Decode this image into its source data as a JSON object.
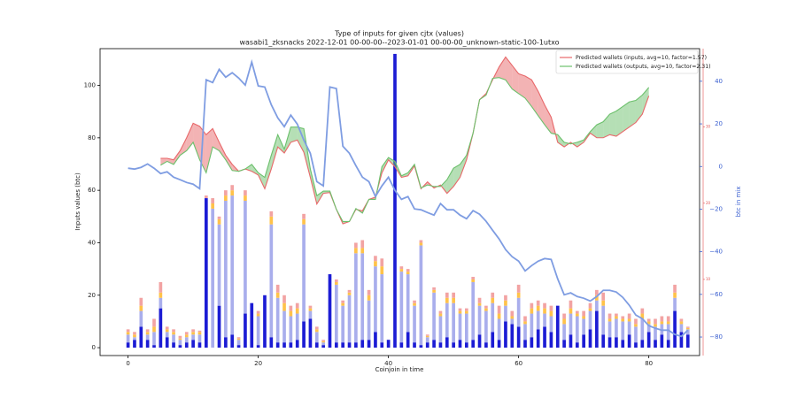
{
  "chart_data": {
    "type": "bar",
    "title": "Type of inputs for given cjtx (values)",
    "subtitle": "wasabi1_zksnacks 2022-12-01 00-00-00--2023-01-01 00-00-00_unknown-static-100-1utxo",
    "x_label": "Coinjoin in time",
    "y_label": "Inputs values (btc)",
    "y2_label": "btc in mix",
    "legend": "upper right",
    "x": [
      0,
      1,
      2,
      3,
      4,
      5,
      6,
      7,
      8,
      9,
      10,
      11,
      12,
      13,
      14,
      15,
      16,
      17,
      18,
      19,
      20,
      21,
      22,
      23,
      24,
      25,
      26,
      27,
      28,
      29,
      30,
      31,
      32,
      33,
      34,
      35,
      36,
      37,
      38,
      39,
      40,
      41,
      42,
      43,
      44,
      45,
      46,
      47,
      48,
      49,
      50,
      51,
      52,
      53,
      54,
      55,
      56,
      57,
      58,
      59,
      60,
      61,
      62,
      63,
      64,
      65,
      66,
      67,
      68,
      69,
      70,
      71,
      72,
      73,
      74,
      75,
      76,
      77,
      78,
      79,
      80,
      81,
      82,
      83,
      84,
      85,
      86
    ],
    "xlim": [
      -4.3,
      87.8
    ],
    "xticks": [
      0,
      20,
      40,
      60,
      80
    ],
    "ylim": [
      -3,
      114
    ],
    "yticks": [
      0,
      20,
      40,
      60,
      80,
      100
    ],
    "y2lim": [
      -88.7,
      55.3
    ],
    "y2ticks": [
      {
        "value": -80,
        "label": "−80"
      },
      {
        "value": -60,
        "label": "−60"
      },
      {
        "value": -40,
        "label": "−40"
      },
      {
        "value": -20,
        "label": "−20"
      },
      0,
      20,
      40
    ],
    "y3lim": [
      0,
      40.3
    ],
    "y3ticks": [
      10,
      20,
      30
    ],
    "bar_series": [
      {
        "color": "#1c1cd4",
        "values": [
          2,
          3,
          8,
          3,
          1,
          15,
          4,
          2,
          1,
          2,
          3,
          2,
          57,
          0,
          16,
          4,
          5,
          1,
          13,
          17,
          1,
          20,
          4,
          2,
          2,
          2,
          3,
          10,
          11,
          2,
          1,
          28,
          2,
          2,
          2,
          2,
          3,
          3,
          6,
          2,
          3,
          112,
          2,
          6,
          2,
          1,
          2,
          3,
          2,
          4,
          2,
          3,
          2,
          3,
          5,
          2,
          6,
          3,
          10,
          9,
          8,
          3,
          4,
          7,
          8,
          6,
          16,
          3,
          5,
          2,
          5,
          7,
          14,
          5,
          4,
          4,
          3,
          5,
          2,
          3,
          6,
          3,
          5,
          3,
          14,
          6,
          5
        ]
      },
      {
        "color": "#a9aeec",
        "values": [
          3,
          1,
          6,
          2,
          5,
          4,
          2,
          3,
          2,
          2,
          2,
          3,
          0,
          53,
          31,
          52,
          53,
          2,
          43,
          0,
          11,
          0,
          43,
          17,
          12,
          10,
          10,
          37,
          3,
          4,
          1,
          0,
          22,
          14,
          18,
          34,
          33,
          15,
          25,
          26,
          0,
          0,
          27,
          22,
          14,
          38,
          2,
          18,
          10,
          13,
          15,
          10,
          11,
          22,
          11,
          12,
          11,
          8,
          6,
          2,
          11,
          6,
          9,
          7,
          5,
          6,
          0,
          6,
          8,
          10,
          6,
          7,
          4,
          11,
          6,
          7,
          7,
          5,
          6,
          8,
          3,
          5,
          4,
          6,
          5,
          3,
          2
        ]
      },
      {
        "color": "#ffc24a",
        "values": [
          1,
          1,
          2,
          1,
          2,
          2,
          1,
          1,
          0.5,
          1,
          1,
          1,
          0,
          2,
          2,
          2,
          2,
          0.5,
          2,
          0,
          1,
          0,
          3,
          2,
          3,
          2,
          2,
          2,
          1,
          1,
          0.5,
          0,
          1,
          1,
          1,
          2,
          2,
          2,
          2,
          3,
          0,
          0,
          1,
          1,
          1,
          1,
          0.5,
          1,
          1,
          2,
          2,
          1,
          1,
          1,
          1,
          1,
          2,
          2,
          2,
          1,
          2,
          1,
          2,
          2,
          2,
          2,
          0,
          2,
          2,
          1,
          1,
          1,
          2,
          2,
          1,
          1,
          1,
          1,
          1,
          2,
          1,
          1,
          1,
          1,
          2,
          1,
          0.5
        ]
      },
      {
        "color": "#f2a3a3",
        "values": [
          1,
          1,
          3,
          1,
          3,
          4,
          1,
          1,
          1,
          1,
          1,
          0.5,
          1,
          2,
          1,
          2,
          2,
          0.5,
          2,
          0,
          1,
          0,
          2,
          3,
          3,
          2,
          2,
          2,
          1,
          1,
          0.5,
          0,
          1,
          1,
          1,
          2,
          3,
          2,
          2,
          3,
          0,
          0,
          1,
          1,
          1,
          1,
          0.5,
          1,
          1,
          2,
          2,
          1,
          1,
          1,
          2,
          1,
          2,
          3,
          2,
          2,
          3,
          2,
          2,
          2,
          2,
          2,
          0,
          2,
          3,
          1,
          2,
          2,
          2,
          3,
          2,
          1,
          1,
          2,
          2,
          2,
          1,
          2,
          2,
          2,
          3,
          1,
          0.5
        ]
      }
    ],
    "series": [
      {
        "name": "Predicted wallets (inputs, avg=10, factor=1.57)",
        "color": "#e8686a",
        "axis": "y3",
        "values": [
          null,
          null,
          null,
          null,
          null,
          25.9,
          25.9,
          25.7,
          26.9,
          28.6,
          30.5,
          30.1,
          29.0,
          29.8,
          28.0,
          26.3,
          25.1,
          24.2,
          24.5,
          24.2,
          23.7,
          21.9,
          24.5,
          27.4,
          26.6,
          28.0,
          28.3,
          26.7,
          23.4,
          19.9,
          21.3,
          21.4,
          19.2,
          17.3,
          17.6,
          19.2,
          19.0,
          20.5,
          20.8,
          24.0,
          25.7,
          24.8,
          23.4,
          23.6,
          24.9,
          21.9,
          22.8,
          22.0,
          22.4,
          21.3,
          22.2,
          23.4,
          25.7,
          29.2,
          33.6,
          34.4,
          36.2,
          37.9,
          39.2,
          38.1,
          37.0,
          36.7,
          36.2,
          34.7,
          32.9,
          31.3,
          28.0,
          27.4,
          28.0,
          27.4,
          28.0,
          29.2,
          28.6,
          28.6,
          29.0,
          28.8,
          29.4,
          30.0,
          30.6,
          31.7,
          34.1,
          null,
          null,
          null,
          null,
          null,
          null
        ]
      },
      {
        "name": "Predicted wallets (outputs, avg=10, factor=2.31)",
        "color": "#6cc06c",
        "axis": "y3",
        "values": [
          null,
          null,
          null,
          null,
          null,
          25.0,
          25.5,
          25.1,
          26.3,
          26.9,
          28.0,
          25.7,
          24.0,
          27.4,
          26.9,
          25.7,
          24.3,
          24.2,
          24.5,
          25.1,
          24.0,
          23.4,
          26.3,
          29.0,
          27.1,
          30.0,
          30.0,
          29.8,
          24.5,
          21.0,
          21.6,
          21.6,
          19.2,
          17.6,
          17.6,
          19.3,
          18.7,
          20.5,
          20.5,
          24.8,
          26.0,
          25.5,
          23.6,
          24.0,
          25.1,
          22.0,
          22.4,
          22.2,
          22.2,
          23.1,
          24.6,
          25.1,
          26.3,
          29.2,
          33.6,
          34.2,
          36.4,
          36.5,
          36.2,
          35.0,
          34.4,
          33.8,
          32.7,
          31.5,
          30.3,
          29.2,
          29.0,
          28.0,
          27.8,
          28.0,
          28.3,
          29.4,
          30.3,
          30.7,
          31.7,
          32.1,
          32.7,
          33.3,
          33.5,
          34.2,
          35.2,
          null,
          null,
          null,
          null,
          null,
          null
        ]
      },
      {
        "color": "#7f9de2",
        "axis": "y2",
        "values": [
          -0.8,
          -1.2,
          -0.4,
          1.2,
          -0.8,
          -3.3,
          -2.5,
          -5.0,
          -6.2,
          -7.5,
          -8.3,
          -10.4,
          40.7,
          39.4,
          45.6,
          41.9,
          44.0,
          41.5,
          38.2,
          49.0,
          37.8,
          37.3,
          29.0,
          22.8,
          18.7,
          24.1,
          19.9,
          12.4,
          6.2,
          -7.1,
          -9.1,
          37.3,
          36.6,
          9.5,
          6.2,
          0.4,
          -5.0,
          -7.1,
          -14.1,
          -9.1,
          -5.0,
          -11.2,
          -15.4,
          -14.1,
          -19.9,
          -20.3,
          -21.6,
          -22.8,
          -17.4,
          -20.3,
          -20.3,
          -22.8,
          -24.5,
          -20.7,
          -22.4,
          -25.7,
          -29.9,
          -34.0,
          -39.0,
          -42.3,
          -44.4,
          -49.0,
          -46.5,
          -44.4,
          -43.2,
          -43.6,
          -52.7,
          -60.2,
          -59.3,
          -61.0,
          -61.8,
          -63.1,
          -61.0,
          -58.1,
          -58.1,
          -58.9,
          -61.4,
          -65.1,
          -69.7,
          -71.4,
          -74.7,
          -75.9,
          -76.8,
          -76.8,
          -78.8,
          -79.7,
          -76.8
        ]
      }
    ]
  }
}
